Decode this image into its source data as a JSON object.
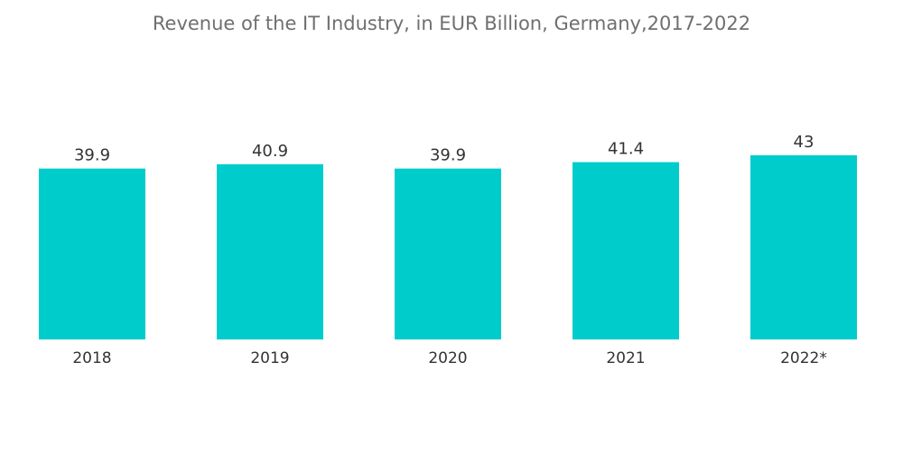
{
  "chart_data": {
    "type": "bar",
    "title": "Revenue of the IT Industry, in EUR Billion, Germany,2017-2022",
    "categories": [
      "2018",
      "2019",
      "2020",
      "2021",
      "2022*"
    ],
    "values": [
      39.9,
      40.9,
      39.9,
      41.4,
      43
    ],
    "value_labels": [
      "39.9",
      "40.9",
      "39.9",
      "41.4",
      "43"
    ],
    "xlabel": "",
    "ylabel": "",
    "ylim": [
      0,
      43
    ],
    "grid": false,
    "legend": "none",
    "bar_color": "#00cccc"
  }
}
